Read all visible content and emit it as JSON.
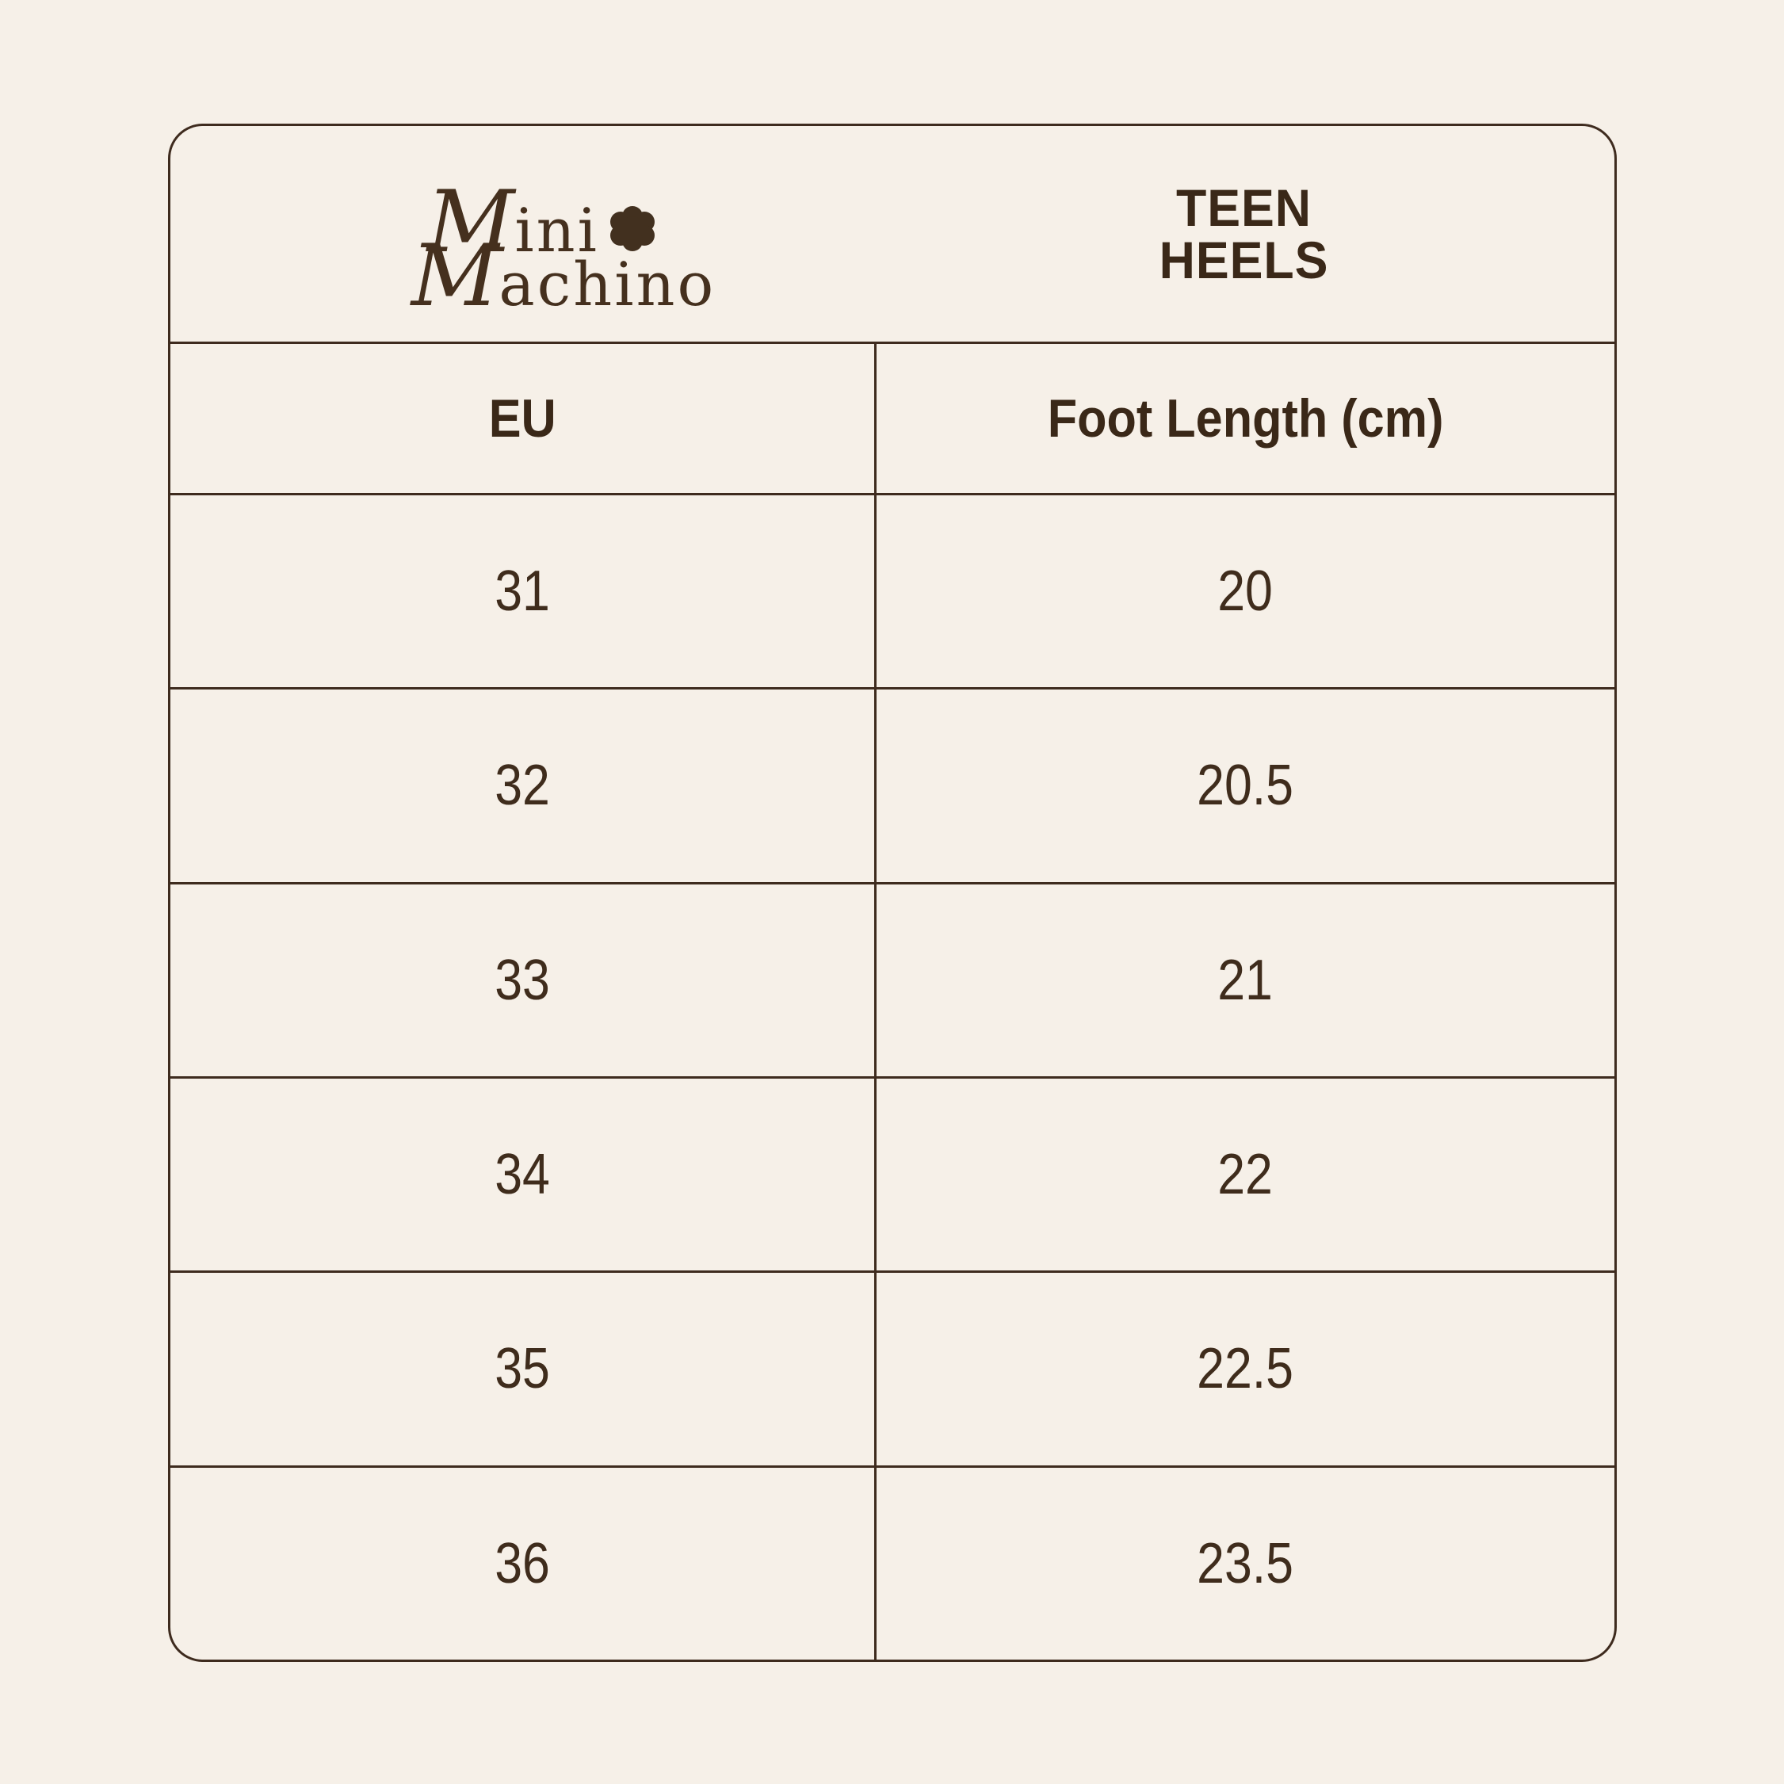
{
  "page": {
    "background_color": "#f6f0e8",
    "line_color": "#3e2b1e",
    "text_color": "#3a2818"
  },
  "brand": {
    "name": "Mini Machino",
    "line1_cap": "M",
    "line1_rest": "ini",
    "line2_cap": "M",
    "line2_rest": "achino",
    "flower_icon": "flower-icon",
    "flower_color": "#42301f"
  },
  "header": {
    "product_line1": "TEEN",
    "product_line2": "HEELS"
  },
  "table": {
    "columns": [
      "EU",
      "Foot Length (cm)"
    ],
    "rows": [
      {
        "eu": "31",
        "foot_length_cm": "20"
      },
      {
        "eu": "32",
        "foot_length_cm": "20.5"
      },
      {
        "eu": "33",
        "foot_length_cm": "21"
      },
      {
        "eu": "34",
        "foot_length_cm": "22"
      },
      {
        "eu": "35",
        "foot_length_cm": "22.5"
      },
      {
        "eu": "36",
        "foot_length_cm": "23.5"
      }
    ]
  },
  "chart_data": {
    "type": "table",
    "title": "TEEN HEELS",
    "brand": "Mini Machino",
    "columns": [
      "EU",
      "Foot Length (cm)"
    ],
    "rows": [
      [
        "31",
        "20"
      ],
      [
        "32",
        "20.5"
      ],
      [
        "33",
        "21"
      ],
      [
        "34",
        "22"
      ],
      [
        "35",
        "22.5"
      ],
      [
        "36",
        "23.5"
      ]
    ],
    "layout_hints": {
      "header_row": "brand logo left, product title right",
      "grid": "on",
      "rounded_border": true
    }
  }
}
